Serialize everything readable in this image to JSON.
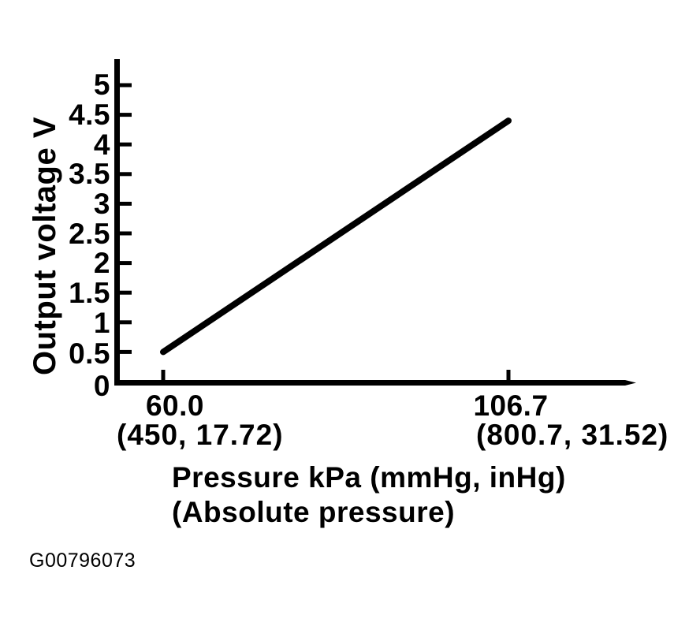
{
  "figure_code": "G00796073",
  "colors": {
    "ink": "#000000",
    "background": "#ffffff"
  },
  "chart_data": {
    "type": "line",
    "title": "",
    "ylabel": "Output voltage V",
    "xlabel_line1": "Pressure kPa (mmHg, inHg)",
    "xlabel_line2": "(Absolute pressure)",
    "y_tick_labels": [
      "0",
      "0.5",
      "1",
      "1.5",
      "2",
      "2.5",
      "3",
      "3.5",
      "4",
      "4.5",
      "5"
    ],
    "ylim": [
      0,
      5.4
    ],
    "xlim_kpa": [
      53.5,
      123
    ],
    "grid": false,
    "legend": false,
    "x_ticks": [
      {
        "kpa": "60.0",
        "mmHg_inHg": "(450, 17.72)"
      },
      {
        "kpa": "106.7",
        "mmHg_inHg": "(800.7, 31.52)"
      }
    ],
    "series": [
      {
        "name": "output-voltage-vs-absolute-pressure",
        "x_kpa": [
          60.0,
          106.7
        ],
        "y_volts": [
          0.5,
          4.4
        ]
      }
    ]
  }
}
